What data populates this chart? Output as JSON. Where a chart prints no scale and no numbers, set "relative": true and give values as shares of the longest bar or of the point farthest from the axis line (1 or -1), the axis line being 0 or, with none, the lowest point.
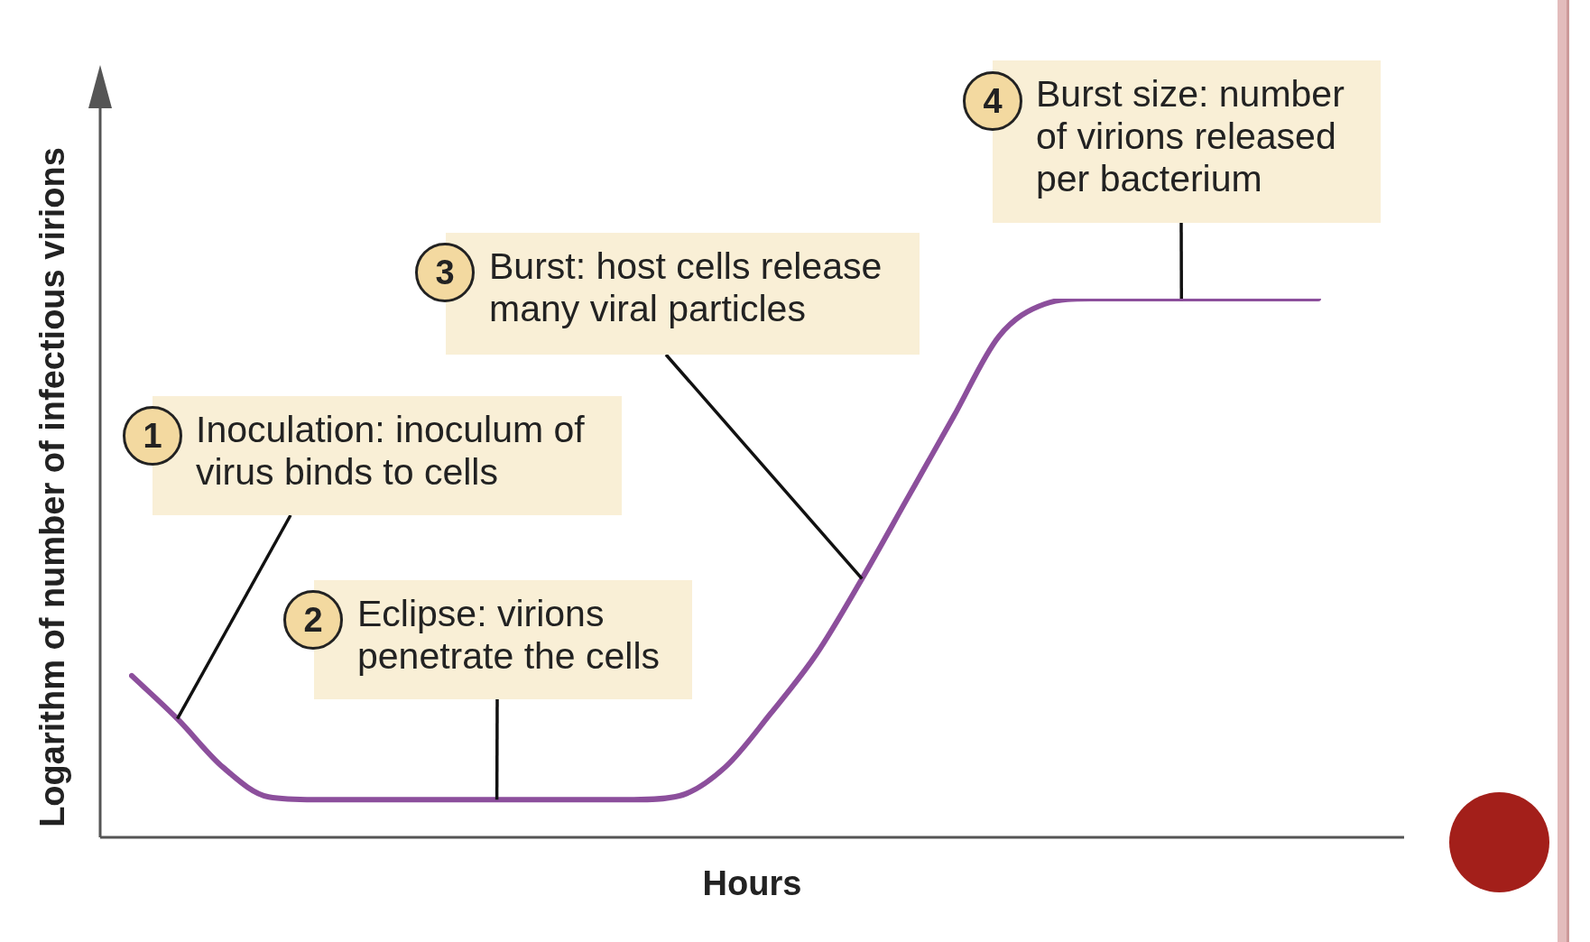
{
  "chart_data": {
    "type": "line",
    "relative": true,
    "xlabel": "Hours",
    "ylabel": "Logarithm of number of infectious virions",
    "categories": [
      null,
      null,
      null,
      null,
      null,
      null,
      null,
      null,
      null,
      null,
      null,
      null,
      null,
      null,
      null,
      null,
      null,
      null,
      null,
      null,
      null,
      null,
      null,
      null,
      null,
      null,
      null
    ],
    "series": [
      {
        "color": "#8c4f9c",
        "values": [
          0.3,
          0.22,
          0.13,
          0.075,
          0.07,
          0.07,
          0.07,
          0.07,
          0.07,
          0.07,
          0.07,
          0.07,
          0.077,
          0.13,
          0.23,
          0.34,
          0.48,
          0.63,
          0.78,
          0.93,
          0.99,
          1,
          1,
          1,
          1,
          1,
          1
        ]
      }
    ],
    "annotations": [
      "1",
      "Inoculation: inoculum of virus binds to cells",
      "2",
      "Eclipse: virions penetrate the cells",
      "3",
      "Burst: host cells release many viral particles",
      "4",
      "Burst size: number of virions released per bacterium"
    ],
    "legend": false,
    "marker": "none",
    "line_style": "solid"
  }
}
